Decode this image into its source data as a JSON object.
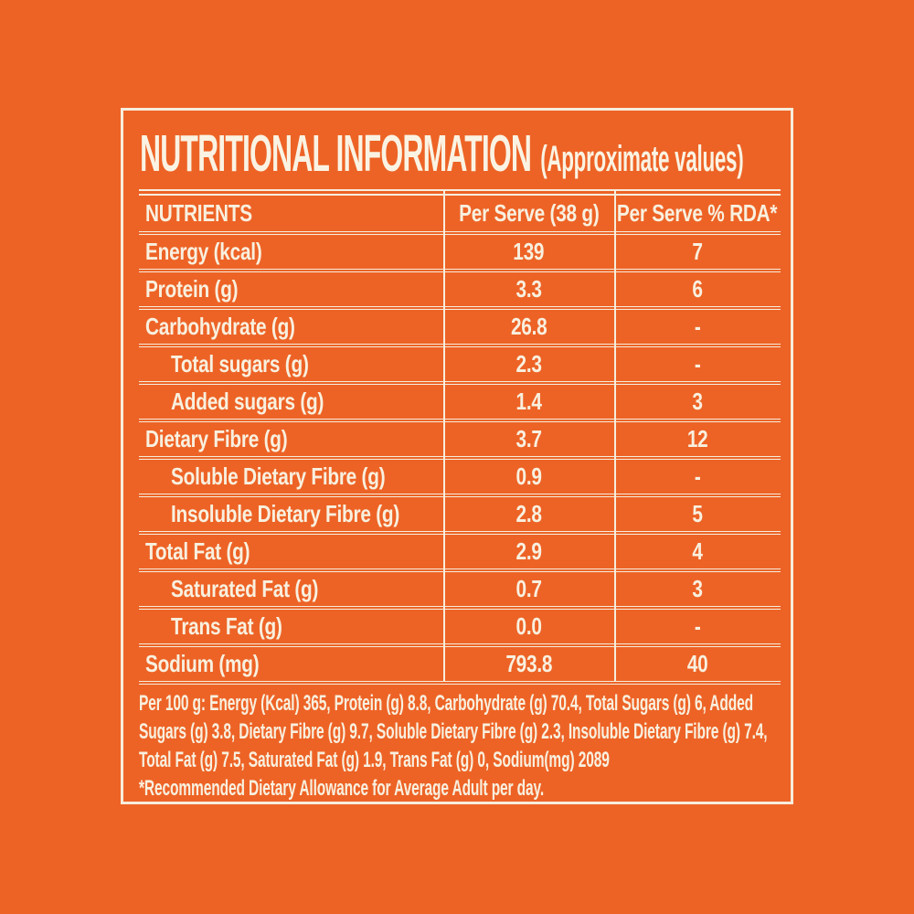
{
  "title": {
    "main": "NUTRITIONAL INFORMATION",
    "sub": "(Approximate values)"
  },
  "table": {
    "headers": [
      "NUTRIENTS",
      "Per Serve (38 g)",
      "Per Serve % RDA*"
    ],
    "rows": [
      {
        "label": "Energy (kcal)",
        "per_serve": "139",
        "rda": "7",
        "indent": false
      },
      {
        "label": "Protein (g)",
        "per_serve": "3.3",
        "rda": "6",
        "indent": false
      },
      {
        "label": "Carbohydrate (g)",
        "per_serve": "26.8",
        "rda": "-",
        "indent": false
      },
      {
        "label": "Total sugars (g)",
        "per_serve": "2.3",
        "rda": "-",
        "indent": true
      },
      {
        "label": "Added sugars (g)",
        "per_serve": "1.4",
        "rda": "3",
        "indent": true
      },
      {
        "label": "Dietary Fibre (g)",
        "per_serve": "3.7",
        "rda": "12",
        "indent": false
      },
      {
        "label": "Soluble Dietary Fibre (g)",
        "per_serve": "0.9",
        "rda": "-",
        "indent": true
      },
      {
        "label": "Insoluble Dietary Fibre (g)",
        "per_serve": "2.8",
        "rda": "5",
        "indent": true
      },
      {
        "label": "Total Fat (g)",
        "per_serve": "2.9",
        "rda": "4",
        "indent": false
      },
      {
        "label": "Saturated Fat (g)",
        "per_serve": "0.7",
        "rda": "3",
        "indent": true
      },
      {
        "label": "Trans Fat (g)",
        "per_serve": "0.0",
        "rda": "-",
        "indent": true
      },
      {
        "label": "Sodium (mg)",
        "per_serve": "793.8",
        "rda": "40",
        "indent": false
      }
    ]
  },
  "footer": {
    "per_100g": "Per 100 g: Energy (Kcal) 365, Protein (g) 8.8, Carbohydrate (g) 70.4, Total Sugars (g) 6, Added Sugars (g) 3.8, Dietary Fibre (g) 9.7, Soluble Dietary Fibre (g) 2.3, Insoluble Dietary Fibre (g) 7.4, Total Fat (g) 7.5, Saturated Fat (g) 1.9, Trans Fat (g) 0, Sodium(mg) 2089",
    "rda_note": "*Recommended Dietary Allowance for Average Adult per day."
  },
  "colors": {
    "background_orange": "#ED6326",
    "border_cream": "#F6EDDC",
    "text_cream": "#F8F0DF"
  }
}
